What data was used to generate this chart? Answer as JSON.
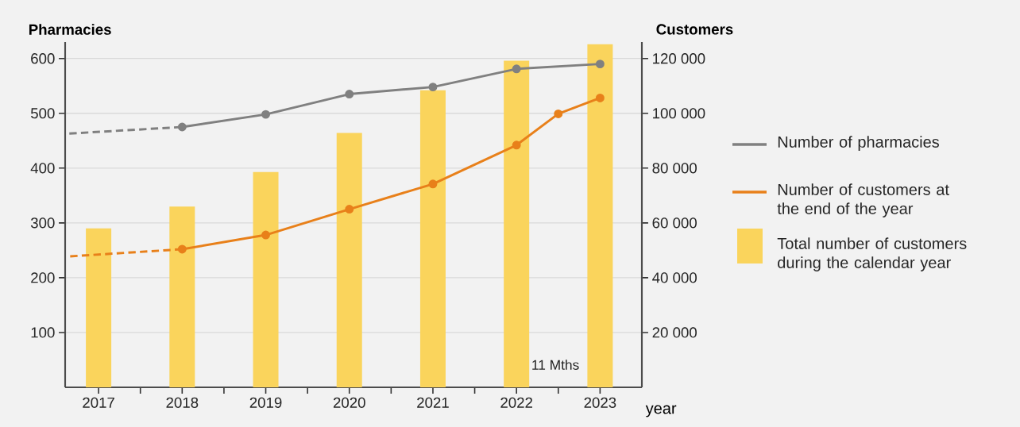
{
  "chart_data": {
    "type": "line",
    "ylabel": "Pharmacies",
    "y2label": "Customers",
    "xlabel": "year",
    "xlim": [
      2016.6,
      2023.5
    ],
    "xticks": [
      2017,
      {
        "value": 2017.5,
        "label": null
      },
      2018,
      {
        "value": 2018.5,
        "label": null
      },
      2019,
      {
        "value": 2019.5,
        "label": null
      },
      2020,
      {
        "value": 2020.5,
        "label": null
      },
      2021,
      {
        "value": 2021.5,
        "label": null
      },
      2022,
      {
        "value": 2022.5,
        "label": null
      },
      2023
    ],
    "ylim": [
      0,
      630
    ],
    "yticks": [
      100,
      200,
      300,
      400,
      500,
      600
    ],
    "y2lim": [
      0,
      126000
    ],
    "y2ticks": [
      {
        "value": 20000,
        "label": "20 000"
      },
      {
        "value": 40000,
        "label": "40 000"
      },
      {
        "value": 60000,
        "label": "60 000"
      },
      {
        "value": 80000,
        "label": "80 000"
      },
      {
        "value": 100000,
        "label": "100 000"
      },
      {
        "value": 120000,
        "label": "120 000"
      }
    ],
    "grid": "y",
    "legend": "right",
    "annotations": [
      "11 Mths"
    ],
    "series": [
      {
        "color": "#808080",
        "line_style": "dashed",
        "x": [
          2016.65,
          2018
        ],
        "values": [
          463,
          475
        ]
      },
      {
        "name": "Number of pharmacies",
        "color": "#808080",
        "line_style": "solid",
        "marker": "circle",
        "x": [
          2018,
          2019,
          2020,
          2021,
          2022,
          2023
        ],
        "values": [
          475,
          498,
          535,
          548,
          581,
          590
        ]
      },
      {
        "axis": "y2",
        "color": "#e8801a",
        "line_style": "dashed",
        "x": [
          2016.66,
          2018
        ],
        "values": [
          47800,
          50400
        ]
      },
      {
        "axis": "y2",
        "name": "Number of customers at the end of the year",
        "color": "#e8801a",
        "line_style": "solid",
        "marker": "circle",
        "x": [
          2018,
          2019,
          2020,
          2021,
          2022,
          2022.5,
          2023
        ],
        "values": [
          50400,
          55600,
          65000,
          74200,
          88400,
          99800,
          105600
        ]
      },
      {
        "type": "bar",
        "axis": "y2",
        "name": "Total number of customers during the calendar year",
        "color": "#fad45c",
        "x": [
          2017,
          2018,
          2019,
          2020,
          2021,
          2022,
          2023
        ],
        "values": [
          58000,
          66000,
          78600,
          92800,
          108400,
          119200,
          125200
        ]
      }
    ]
  }
}
